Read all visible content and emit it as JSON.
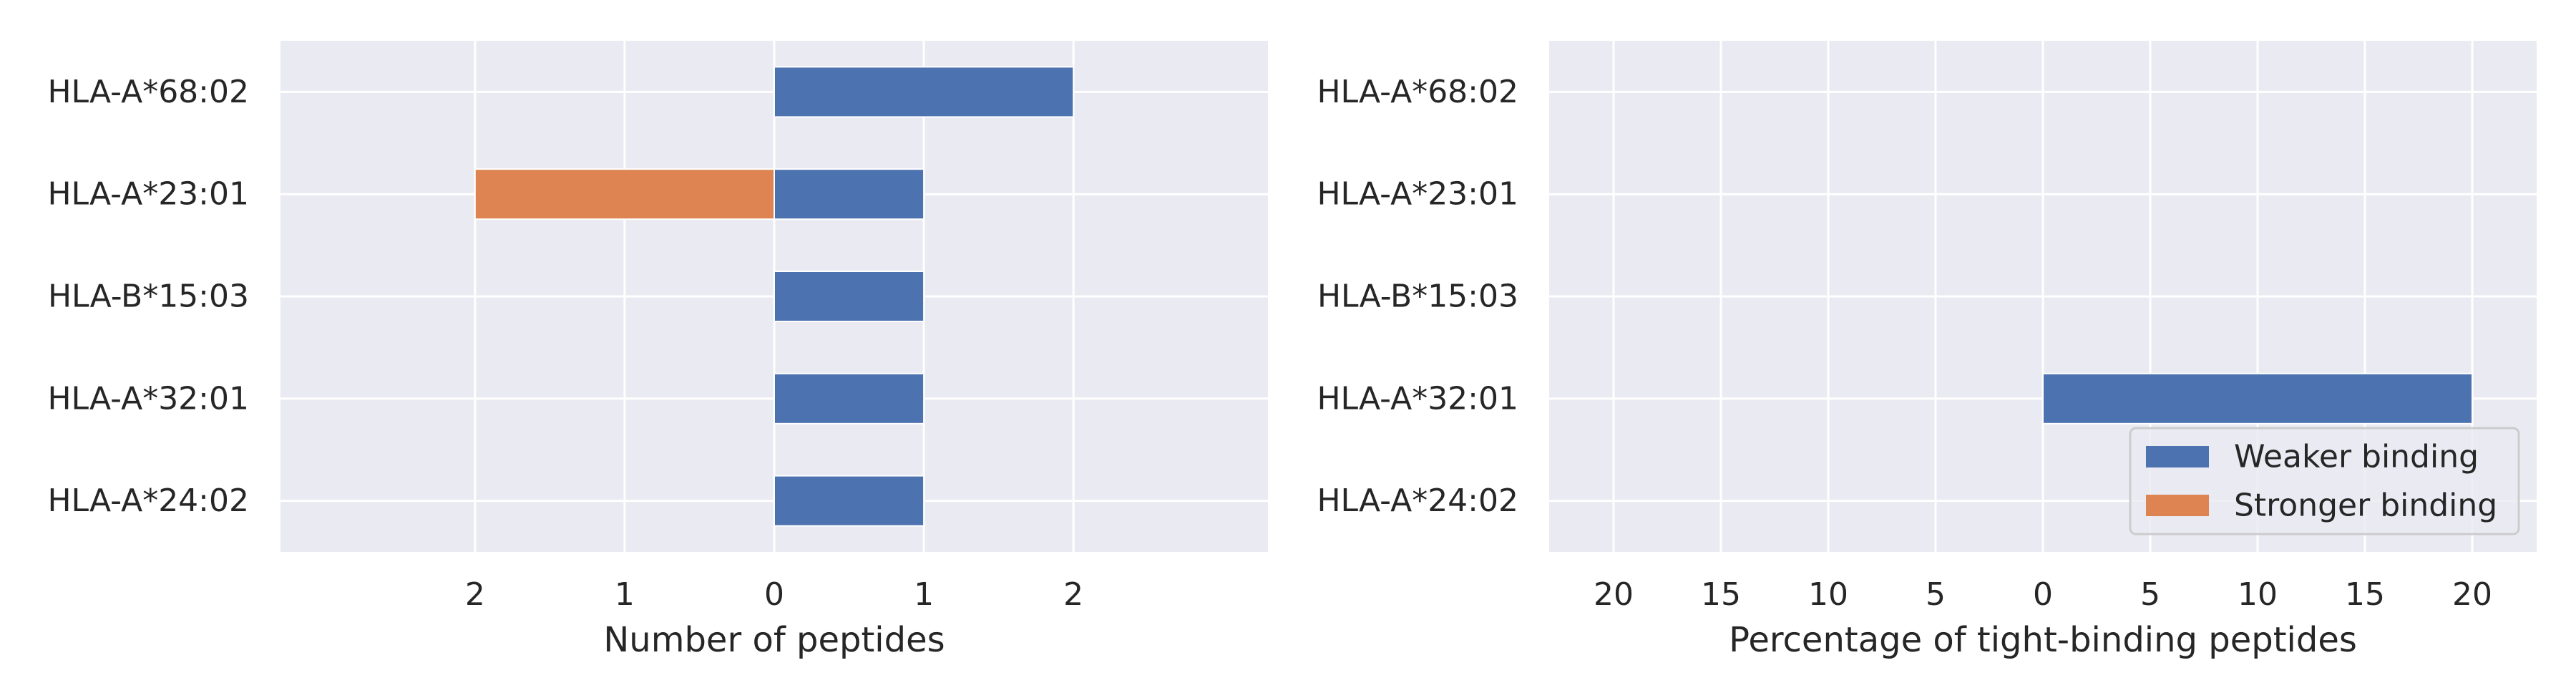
{
  "chart_data": [
    {
      "type": "bar",
      "orientation": "horizontal",
      "categories": [
        "HLA-A*68:02",
        "HLA-A*23:01",
        "HLA-B*15:03",
        "HLA-A*32:01",
        "HLA-A*24:02"
      ],
      "series": [
        {
          "name": "Weaker binding",
          "values": [
            2,
            1,
            1,
            1,
            1
          ],
          "color": "#4c72b0"
        },
        {
          "name": "Stronger binding",
          "values": [
            0,
            2,
            0,
            0,
            0
          ],
          "color": "#dd8452"
        }
      ],
      "xlabel": "Number of peptides",
      "xticks": [
        {
          "value": -2,
          "label": "2"
        },
        {
          "value": -1,
          "label": "1"
        },
        {
          "value": 0,
          "label": "0"
        },
        {
          "value": 1,
          "label": "1"
        },
        {
          "value": 2,
          "label": "2"
        }
      ],
      "xlim": [
        -3.3,
        3.3
      ],
      "grid": true,
      "background": "#eaeaf2"
    },
    {
      "type": "bar",
      "orientation": "horizontal",
      "categories": [
        "HLA-A*68:02",
        "HLA-A*23:01",
        "HLA-B*15:03",
        "HLA-A*32:01",
        "HLA-A*24:02"
      ],
      "series": [
        {
          "name": "Weaker binding",
          "values": [
            0,
            0,
            0,
            20,
            0
          ],
          "color": "#4c72b0"
        },
        {
          "name": "Stronger binding",
          "values": [
            0,
            0,
            0,
            0,
            0
          ],
          "color": "#dd8452"
        }
      ],
      "xlabel": "Percentage of tight-binding peptides",
      "xticks": [
        {
          "value": -20,
          "label": "20"
        },
        {
          "value": -15,
          "label": "15"
        },
        {
          "value": -10,
          "label": "10"
        },
        {
          "value": -5,
          "label": "5"
        },
        {
          "value": 0,
          "label": "0"
        },
        {
          "value": 5,
          "label": "5"
        },
        {
          "value": 10,
          "label": "10"
        },
        {
          "value": 15,
          "label": "15"
        },
        {
          "value": 20,
          "label": "20"
        }
      ],
      "xlim": [
        -23,
        23
      ],
      "grid": true,
      "background": "#eaeaf2",
      "legend": {
        "placement": "lower-right",
        "entries": [
          {
            "label": "Weaker binding",
            "color": "#4c72b0"
          },
          {
            "label": "Stronger binding",
            "color": "#dd8452"
          }
        ]
      }
    }
  ]
}
